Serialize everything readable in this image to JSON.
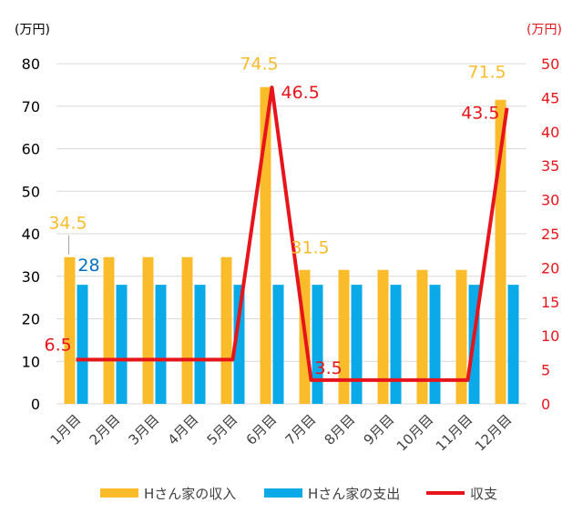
{
  "chart_data": {
    "type": "bar",
    "categories": [
      "1月目",
      "2月目",
      "3月目",
      "4月目",
      "5月目",
      "6月目",
      "7月目",
      "8月目",
      "9月目",
      "10月目",
      "11月目",
      "12月目"
    ],
    "series": [
      {
        "name": "Hさん家の収入",
        "kind": "bar",
        "axis": "left",
        "color": "#FBBC2C",
        "values": [
          34.5,
          34.5,
          34.5,
          34.5,
          34.5,
          74.5,
          31.5,
          31.5,
          31.5,
          31.5,
          31.5,
          71.5
        ]
      },
      {
        "name": "Hさん家の支出",
        "kind": "bar",
        "axis": "left",
        "color": "#0AAAE8",
        "values": [
          28,
          28,
          28,
          28,
          28,
          28,
          28,
          28,
          28,
          28,
          28,
          28
        ]
      },
      {
        "name": "収支",
        "kind": "line",
        "axis": "right",
        "color": "#E8141B",
        "values": [
          6.5,
          6.5,
          6.5,
          6.5,
          6.5,
          46.5,
          3.5,
          3.5,
          3.5,
          3.5,
          3.5,
          43.5
        ]
      }
    ],
    "y_left": {
      "unit": "(万円)",
      "range": [
        0,
        80
      ],
      "ticks": [
        0,
        10,
        20,
        30,
        40,
        50,
        60,
        70,
        80
      ]
    },
    "y_right": {
      "unit": "(万円)",
      "range": [
        0,
        50
      ],
      "ticks": [
        0,
        5,
        10,
        15,
        20,
        25,
        30,
        35,
        40,
        45,
        50
      ],
      "color": "#E8141B"
    },
    "grid": true,
    "legend_position": "bottom",
    "data_labels": [
      {
        "text": "34.5",
        "series": "Hさん家の収入",
        "index": 0,
        "color": "#FBBC2C"
      },
      {
        "text": "28",
        "series": "Hさん家の支出",
        "index": 0,
        "color": "#0070C0"
      },
      {
        "text": "74.5",
        "series": "Hさん家の収入",
        "index": 5,
        "color": "#FBBC2C"
      },
      {
        "text": "31.5",
        "series": "Hさん家の収入",
        "index": 6,
        "color": "#FBBC2C"
      },
      {
        "text": "71.5",
        "series": "Hさん家の収入",
        "index": 11,
        "color": "#FBBC2C"
      },
      {
        "text": "6.5",
        "series": "収支",
        "index": 0,
        "color": "#E8141B"
      },
      {
        "text": "46.5",
        "series": "収支",
        "index": 5,
        "color": "#E8141B"
      },
      {
        "text": "3.5",
        "series": "収支",
        "index": 6,
        "color": "#E8141B"
      },
      {
        "text": "43.5",
        "series": "収支",
        "index": 11,
        "color": "#E8141B"
      }
    ]
  }
}
